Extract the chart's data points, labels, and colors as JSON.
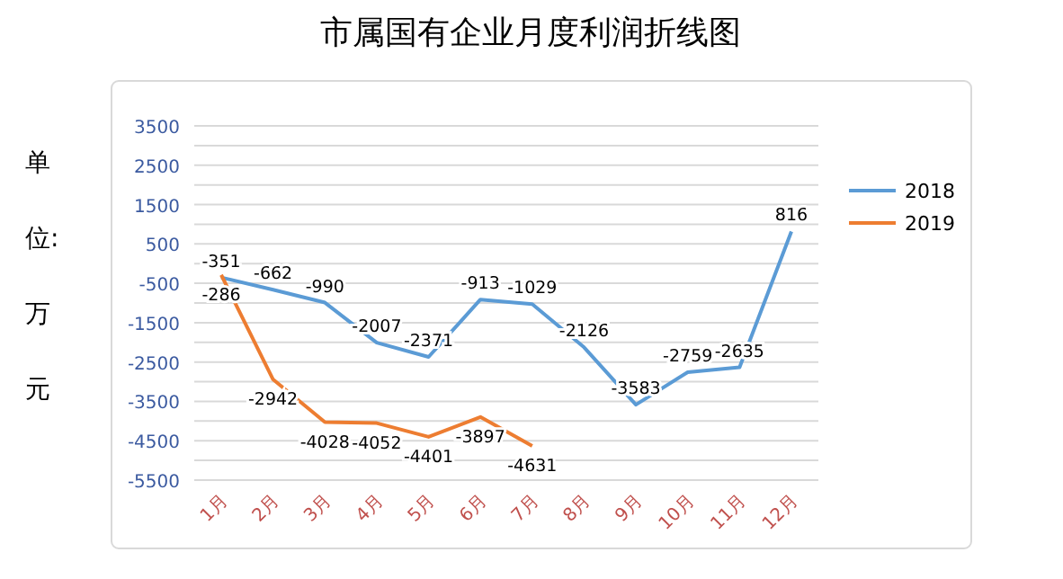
{
  "chart_data": {
    "type": "line",
    "title": "市属国有企业月度利润折线图",
    "ylabel": "单位:万元",
    "categories": [
      "1月",
      "2月",
      "3月",
      "4月",
      "5月",
      "6月",
      "7月",
      "8月",
      "9月",
      "10月",
      "11月",
      "12月"
    ],
    "series": [
      {
        "name": "2018",
        "color": "#5b9bd5",
        "values": [
          -351,
          -662,
          -990,
          -2007,
          -2371,
          -913,
          -1029,
          -2126,
          -3583,
          -2759,
          -2635,
          816
        ]
      },
      {
        "name": "2019",
        "color": "#ed7d31",
        "values": [
          -286,
          -2942,
          -4028,
          -4052,
          -4401,
          -3897,
          -4631,
          null,
          null,
          null,
          null,
          null
        ]
      }
    ],
    "ylim": [
      -5500,
      3500
    ],
    "yticks": [
      3500,
      {
        "value": 3000,
        "label": null
      },
      2500,
      {
        "value": 2000,
        "label": null
      },
      1500,
      {
        "value": 1000,
        "label": null
      },
      500,
      {
        "value": 0,
        "label": null
      },
      -500,
      {
        "value": -1000,
        "label": null
      },
      -1500,
      {
        "value": -2000,
        "label": null
      },
      -2500,
      {
        "value": -3000,
        "label": null
      },
      -3500,
      {
        "value": -4000,
        "label": null
      },
      -4500,
      {
        "value": -5000,
        "label": null
      },
      -5500
    ],
    "grid": true,
    "legend": "right",
    "data_labels": true,
    "marker": "none",
    "line_style": "solid"
  }
}
